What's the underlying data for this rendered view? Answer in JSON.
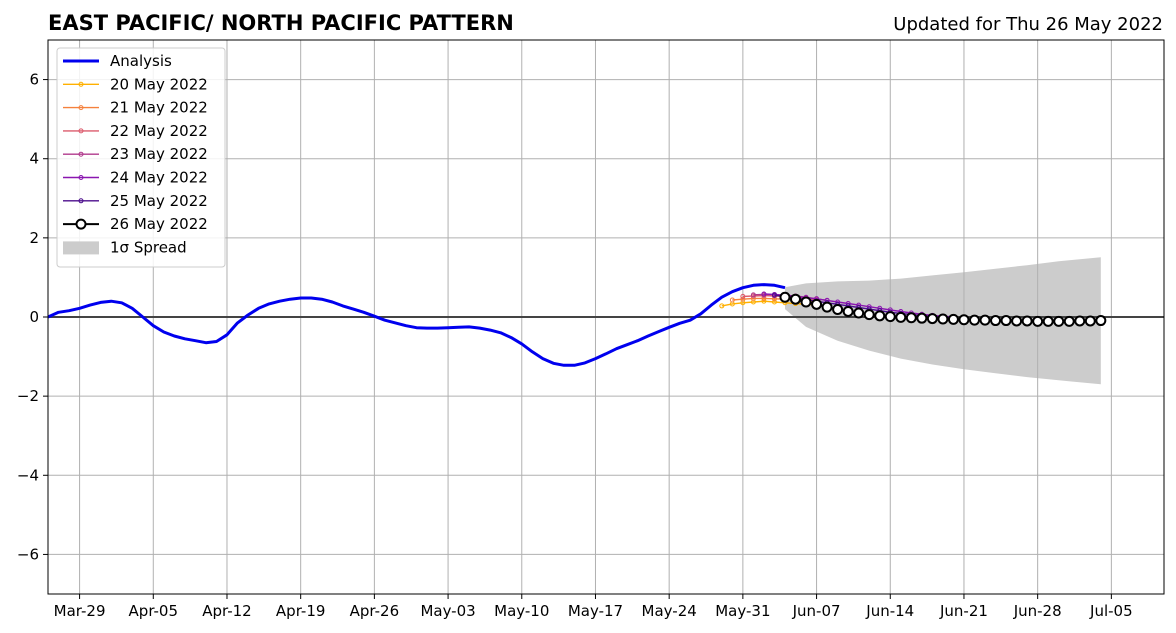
{
  "chart_data": {
    "type": "line",
    "title": "EAST PACIFIC/ NORTH PACIFIC PATTERN",
    "subtitle": "Updated for Thu 26 May 2022",
    "xlabel": "",
    "ylabel": "",
    "x_range": [
      "2022-03-26",
      "2022-07-10"
    ],
    "ylim": [
      -7,
      7
    ],
    "grid": true,
    "legend_position": "top-left",
    "x_tick_dates": [
      "2022-03-29",
      "2022-04-05",
      "2022-04-12",
      "2022-04-19",
      "2022-04-26",
      "2022-05-03",
      "2022-05-10",
      "2022-05-17",
      "2022-05-24",
      "2022-05-31",
      "2022-06-07",
      "2022-06-14",
      "2022-06-21",
      "2022-06-28",
      "2022-07-05"
    ],
    "x_tick_labels": [
      "Mar-29",
      "Apr-05",
      "Apr-12",
      "Apr-19",
      "Apr-26",
      "May-03",
      "May-10",
      "May-17",
      "May-24",
      "May-31",
      "Jun-07",
      "Jun-14",
      "Jun-21",
      "Jun-28",
      "Jul-05"
    ],
    "y_ticks": [
      -6,
      -4,
      -2,
      0,
      2,
      4,
      6
    ],
    "y_tick_labels": [
      "−6",
      "−4",
      "−2",
      "0",
      "2",
      "4",
      "6"
    ],
    "analysis": {
      "name": "Analysis",
      "color": "#0000ee",
      "points": [
        [
          "2022-03-26",
          0.0
        ],
        [
          "2022-03-27",
          0.12
        ],
        [
          "2022-03-28",
          0.16
        ],
        [
          "2022-03-29",
          0.22
        ],
        [
          "2022-03-30",
          0.3
        ],
        [
          "2022-03-31",
          0.37
        ],
        [
          "2022-04-01",
          0.4
        ],
        [
          "2022-04-02",
          0.36
        ],
        [
          "2022-04-03",
          0.22
        ],
        [
          "2022-04-04",
          0.0
        ],
        [
          "2022-04-05",
          -0.22
        ],
        [
          "2022-04-06",
          -0.38
        ],
        [
          "2022-04-07",
          -0.48
        ],
        [
          "2022-04-08",
          -0.55
        ],
        [
          "2022-04-09",
          -0.6
        ],
        [
          "2022-04-10",
          -0.65
        ],
        [
          "2022-04-11",
          -0.62
        ],
        [
          "2022-04-12",
          -0.45
        ],
        [
          "2022-04-13",
          -0.15
        ],
        [
          "2022-04-14",
          0.05
        ],
        [
          "2022-04-15",
          0.22
        ],
        [
          "2022-04-16",
          0.33
        ],
        [
          "2022-04-17",
          0.4
        ],
        [
          "2022-04-18",
          0.45
        ],
        [
          "2022-04-19",
          0.48
        ],
        [
          "2022-04-20",
          0.48
        ],
        [
          "2022-04-21",
          0.45
        ],
        [
          "2022-04-22",
          0.38
        ],
        [
          "2022-04-23",
          0.28
        ],
        [
          "2022-04-24",
          0.2
        ],
        [
          "2022-04-25",
          0.12
        ],
        [
          "2022-04-26",
          0.02
        ],
        [
          "2022-04-27",
          -0.08
        ],
        [
          "2022-04-28",
          -0.15
        ],
        [
          "2022-04-29",
          -0.22
        ],
        [
          "2022-04-30",
          -0.27
        ],
        [
          "2022-05-01",
          -0.28
        ],
        [
          "2022-05-02",
          -0.28
        ],
        [
          "2022-05-03",
          -0.27
        ],
        [
          "2022-05-04",
          -0.26
        ],
        [
          "2022-05-05",
          -0.25
        ],
        [
          "2022-05-06",
          -0.28
        ],
        [
          "2022-05-07",
          -0.33
        ],
        [
          "2022-05-08",
          -0.4
        ],
        [
          "2022-05-09",
          -0.52
        ],
        [
          "2022-05-10",
          -0.68
        ],
        [
          "2022-05-11",
          -0.88
        ],
        [
          "2022-05-12",
          -1.05
        ],
        [
          "2022-05-13",
          -1.17
        ],
        [
          "2022-05-14",
          -1.22
        ],
        [
          "2022-05-15",
          -1.22
        ],
        [
          "2022-05-16",
          -1.16
        ],
        [
          "2022-05-17",
          -1.05
        ],
        [
          "2022-05-18",
          -0.93
        ],
        [
          "2022-05-19",
          -0.8
        ],
        [
          "2022-05-20",
          -0.7
        ],
        [
          "2022-05-21",
          -0.6
        ],
        [
          "2022-05-22",
          -0.48
        ],
        [
          "2022-05-23",
          -0.37
        ],
        [
          "2022-05-24",
          -0.26
        ],
        [
          "2022-05-25",
          -0.16
        ],
        [
          "2022-05-26",
          -0.08
        ],
        [
          "2022-05-27",
          0.08
        ],
        [
          "2022-05-28",
          0.3
        ],
        [
          "2022-05-29",
          0.5
        ],
        [
          "2022-05-30",
          0.64
        ],
        [
          "2022-05-31",
          0.74
        ],
        [
          "2022-06-01",
          0.8
        ],
        [
          "2022-06-02",
          0.82
        ],
        [
          "2022-06-03",
          0.8
        ],
        [
          "2022-06-04",
          0.74
        ]
      ]
    },
    "forecasts": [
      {
        "name": "20 May 2022",
        "color": "#ffb000",
        "points": [
          [
            "2022-05-29",
            0.28
          ],
          [
            "2022-05-30",
            0.33
          ],
          [
            "2022-05-31",
            0.36
          ],
          [
            "2022-06-01",
            0.38
          ],
          [
            "2022-06-02",
            0.4
          ],
          [
            "2022-06-03",
            0.38
          ],
          [
            "2022-06-04",
            0.36
          ],
          [
            "2022-06-05",
            0.34
          ],
          [
            "2022-06-06",
            0.32
          ],
          [
            "2022-06-07",
            0.3
          ]
        ]
      },
      {
        "name": "21 May 2022",
        "color": "#f5813d",
        "points": [
          [
            "2022-05-30",
            0.43
          ],
          [
            "2022-05-31",
            0.45
          ],
          [
            "2022-06-01",
            0.47
          ],
          [
            "2022-06-02",
            0.47
          ],
          [
            "2022-06-03",
            0.46
          ],
          [
            "2022-06-04",
            0.45
          ],
          [
            "2022-06-05",
            0.43
          ],
          [
            "2022-06-06",
            0.41
          ],
          [
            "2022-06-07",
            0.38
          ]
        ]
      },
      {
        "name": "22 May 2022",
        "color": "#dc5a6c",
        "points": [
          [
            "2022-05-31",
            0.52
          ],
          [
            "2022-06-01",
            0.53
          ],
          [
            "2022-06-02",
            0.54
          ],
          [
            "2022-06-03",
            0.53
          ],
          [
            "2022-06-04",
            0.52
          ],
          [
            "2022-06-05",
            0.5
          ],
          [
            "2022-06-06",
            0.47
          ],
          [
            "2022-06-07",
            0.44
          ]
        ]
      },
      {
        "name": "23 May 2022",
        "color": "#b03a8c",
        "points": [
          [
            "2022-06-01",
            0.56
          ],
          [
            "2022-06-02",
            0.57
          ],
          [
            "2022-06-03",
            0.56
          ],
          [
            "2022-06-04",
            0.55
          ],
          [
            "2022-06-05",
            0.53
          ],
          [
            "2022-06-06",
            0.5
          ],
          [
            "2022-06-07",
            0.46
          ],
          [
            "2022-06-08",
            0.42
          ]
        ]
      },
      {
        "name": "24 May 2022",
        "color": "#8a16b0",
        "points": [
          [
            "2022-06-02",
            0.58
          ],
          [
            "2022-06-03",
            0.57
          ],
          [
            "2022-06-04",
            0.55
          ],
          [
            "2022-06-05",
            0.52
          ],
          [
            "2022-06-06",
            0.49
          ],
          [
            "2022-06-07",
            0.46
          ],
          [
            "2022-06-08",
            0.42
          ],
          [
            "2022-06-09",
            0.38
          ],
          [
            "2022-06-10",
            0.34
          ],
          [
            "2022-06-11",
            0.3
          ],
          [
            "2022-06-12",
            0.26
          ],
          [
            "2022-06-13",
            0.22
          ],
          [
            "2022-06-14",
            0.18
          ],
          [
            "2022-06-15",
            0.14
          ],
          [
            "2022-06-16",
            0.1
          ],
          [
            "2022-06-17",
            0.07
          ],
          [
            "2022-06-18",
            0.04
          ],
          [
            "2022-06-19",
            0.02
          ],
          [
            "2022-06-20",
            0.0
          ]
        ]
      },
      {
        "name": "25 May 2022",
        "color": "#4b0d8c",
        "points": [
          [
            "2022-06-03",
            0.55
          ],
          [
            "2022-06-04",
            0.52
          ],
          [
            "2022-06-05",
            0.48
          ],
          [
            "2022-06-06",
            0.44
          ],
          [
            "2022-06-07",
            0.4
          ],
          [
            "2022-06-08",
            0.36
          ],
          [
            "2022-06-09",
            0.32
          ],
          [
            "2022-06-10",
            0.28
          ],
          [
            "2022-06-11",
            0.24
          ],
          [
            "2022-06-12",
            0.2
          ],
          [
            "2022-06-13",
            0.16
          ],
          [
            "2022-06-14",
            0.12
          ],
          [
            "2022-06-15",
            0.09
          ],
          [
            "2022-06-16",
            0.06
          ],
          [
            "2022-06-17",
            0.03
          ],
          [
            "2022-06-18",
            0.01
          ],
          [
            "2022-06-19",
            0.0
          ],
          [
            "2022-06-20",
            -0.01
          ]
        ]
      },
      {
        "name": "26 May 2022",
        "color": "#000000",
        "points": [
          [
            "2022-06-04",
            0.5
          ],
          [
            "2022-06-05",
            0.45
          ],
          [
            "2022-06-06",
            0.38
          ],
          [
            "2022-06-07",
            0.32
          ],
          [
            "2022-06-08",
            0.25
          ],
          [
            "2022-06-09",
            0.19
          ],
          [
            "2022-06-10",
            0.14
          ],
          [
            "2022-06-11",
            0.1
          ],
          [
            "2022-06-12",
            0.06
          ],
          [
            "2022-06-13",
            0.03
          ],
          [
            "2022-06-14",
            0.01
          ],
          [
            "2022-06-15",
            -0.01
          ],
          [
            "2022-06-16",
            -0.02
          ],
          [
            "2022-06-17",
            -0.03
          ],
          [
            "2022-06-18",
            -0.04
          ],
          [
            "2022-06-19",
            -0.05
          ],
          [
            "2022-06-20",
            -0.06
          ],
          [
            "2022-06-21",
            -0.07
          ],
          [
            "2022-06-22",
            -0.08
          ],
          [
            "2022-06-23",
            -0.08
          ],
          [
            "2022-06-24",
            -0.09
          ],
          [
            "2022-06-25",
            -0.09
          ],
          [
            "2022-06-26",
            -0.1
          ],
          [
            "2022-06-27",
            -0.1
          ],
          [
            "2022-06-28",
            -0.11
          ],
          [
            "2022-06-29",
            -0.11
          ],
          [
            "2022-06-30",
            -0.11
          ],
          [
            "2022-07-01",
            -0.11
          ],
          [
            "2022-07-02",
            -0.1
          ],
          [
            "2022-07-03",
            -0.1
          ],
          [
            "2022-07-04",
            -0.09
          ]
        ]
      }
    ],
    "spread": {
      "name": "1σ Spread",
      "color": "#cccccc",
      "x": [
        "2022-06-04",
        "2022-06-06",
        "2022-06-09",
        "2022-06-12",
        "2022-06-15",
        "2022-06-18",
        "2022-06-21",
        "2022-06-24",
        "2022-06-27",
        "2022-06-30",
        "2022-07-04"
      ],
      "upper": [
        0.75,
        0.85,
        0.9,
        0.92,
        0.97,
        1.05,
        1.13,
        1.22,
        1.31,
        1.41,
        1.51
      ],
      "lower": [
        0.2,
        -0.25,
        -0.6,
        -0.85,
        -1.05,
        -1.2,
        -1.32,
        -1.42,
        -1.52,
        -1.6,
        -1.7
      ]
    }
  }
}
